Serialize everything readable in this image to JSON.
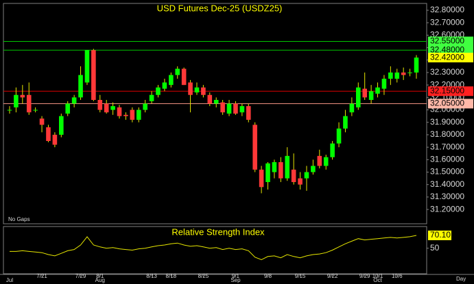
{
  "chart_data": [
    {
      "type": "candlestick",
      "title": "USD Futures Dec-25 (USDZ25)",
      "note": "No Gaps",
      "period": "Day",
      "categories": [
        null,
        null,
        null,
        null,
        null,
        "7/21",
        null,
        null,
        null,
        null,
        null,
        "7/29",
        null,
        null,
        "8/1",
        null,
        null,
        null,
        null,
        null,
        null,
        null,
        "8/13",
        null,
        null,
        "8/18",
        null,
        null,
        null,
        null,
        "8/25",
        null,
        null,
        null,
        null,
        "9/1",
        null,
        null,
        null,
        null,
        "9/8",
        null,
        null,
        null,
        null,
        "9/15",
        null,
        null,
        null,
        null,
        "9/22",
        null,
        null,
        null,
        null,
        "9/29",
        null,
        "10/1",
        null,
        null,
        "10/6",
        null,
        null,
        null
      ],
      "months": [
        {
          "label": "Jul",
          "at": 0
        },
        {
          "label": "Aug",
          "at": 14
        },
        {
          "label": "Sep",
          "at": 35
        },
        {
          "label": "Oct",
          "at": 57
        }
      ],
      "open": [
        32.0,
        32.02,
        32.12,
        32.12,
        32.0,
        31.93,
        31.86,
        31.8,
        31.8,
        31.97,
        32.05,
        32.1,
        32.22,
        32.48,
        32.08,
        32.05,
        32.0,
        32.02,
        31.96,
        32.0,
        31.92,
        32.0,
        32.07,
        32.12,
        32.17,
        32.2,
        32.28,
        32.33,
        32.22,
        32.14,
        32.18,
        32.12,
        32.05,
        32.06,
        31.97,
        32.05,
        31.98,
        32.03,
        31.88,
        31.52,
        31.42,
        31.5,
        31.58,
        31.45,
        31.52,
        31.45,
        31.45,
        31.5,
        31.63,
        31.55,
        31.62,
        31.73,
        31.85,
        31.98,
        32.02,
        32.17,
        32.08,
        32.13,
        32.17,
        32.25,
        32.25,
        32.3,
        32.3,
        32.3
      ],
      "high": [
        32.03,
        32.18,
        32.2,
        32.22,
        32.02,
        31.95,
        31.88,
        31.82,
        31.97,
        32.07,
        32.12,
        32.35,
        32.48,
        32.49,
        32.12,
        32.08,
        32.06,
        32.04,
        31.98,
        32.02,
        32.02,
        32.08,
        32.15,
        32.2,
        32.25,
        32.3,
        32.35,
        32.34,
        32.24,
        32.22,
        32.2,
        32.14,
        32.1,
        32.08,
        32.08,
        32.07,
        32.05,
        32.05,
        31.9,
        31.55,
        31.58,
        31.6,
        31.62,
        31.7,
        31.65,
        31.5,
        31.55,
        31.6,
        31.68,
        31.64,
        31.75,
        31.9,
        32.0,
        32.1,
        32.22,
        32.3,
        32.2,
        32.22,
        32.28,
        32.35,
        32.33,
        32.34,
        32.33,
        32.44
      ],
      "low": [
        31.97,
        31.98,
        32.05,
        31.96,
        31.98,
        31.82,
        31.74,
        31.7,
        31.78,
        31.95,
        32.02,
        32.08,
        32.2,
        32.07,
        31.98,
        31.97,
        31.96,
        31.93,
        31.92,
        31.9,
        31.9,
        31.98,
        32.05,
        32.1,
        32.15,
        32.18,
        32.25,
        32.2,
        31.98,
        32.12,
        32.1,
        32.03,
        32.02,
        31.96,
        31.95,
        31.96,
        31.95,
        31.9,
        31.5,
        31.33,
        31.36,
        31.45,
        31.42,
        31.43,
        31.4,
        31.36,
        31.35,
        31.48,
        31.53,
        31.52,
        31.6,
        31.7,
        31.82,
        31.95,
        32.0,
        32.08,
        32.05,
        32.1,
        32.12,
        32.2,
        32.22,
        32.24,
        32.27,
        32.25
      ],
      "close": [
        32.0,
        32.12,
        32.1,
        31.98,
        32.0,
        31.88,
        31.75,
        31.72,
        31.95,
        32.05,
        32.1,
        32.28,
        32.48,
        32.08,
        32.0,
        31.98,
        32.03,
        31.95,
        31.95,
        31.92,
        32.0,
        32.05,
        32.12,
        32.18,
        32.22,
        32.28,
        32.33,
        32.2,
        32.12,
        32.18,
        32.12,
        32.05,
        32.08,
        31.98,
        32.05,
        31.97,
        32.03,
        31.92,
        31.52,
        31.38,
        31.57,
        31.58,
        31.45,
        31.63,
        31.42,
        31.4,
        31.5,
        31.55,
        31.55,
        31.62,
        31.73,
        31.85,
        31.95,
        32.05,
        32.18,
        32.1,
        32.15,
        32.18,
        32.25,
        32.3,
        32.3,
        32.28,
        32.3,
        32.42
      ],
      "up_color": "#00ff00",
      "down_color": "#ff3838",
      "wick_color": "#e8e800",
      "ylim": [
        31.085,
        32.855
      ],
      "yticks": [
        {
          "value": 32.8,
          "label": "32.80000"
        },
        {
          "value": 32.7,
          "label": "32.70000"
        },
        {
          "value": 32.6,
          "label": "32.60000"
        },
        {
          "value": 32.5,
          "label": "32.50000"
        },
        {
          "value": 32.4,
          "label": "32.40000"
        },
        {
          "value": 32.3,
          "label": "32.30000"
        },
        {
          "value": 32.2,
          "label": "32.20000"
        },
        {
          "value": 32.1,
          "label": "32.10000"
        },
        {
          "value": 32.0,
          "label": "32.00000"
        },
        {
          "value": 31.9,
          "label": "31.90000"
        },
        {
          "value": 31.8,
          "label": "31.80000"
        },
        {
          "value": 31.7,
          "label": "31.70000"
        },
        {
          "value": 31.6,
          "label": "31.60000"
        },
        {
          "value": 31.5,
          "label": "31.50000"
        },
        {
          "value": 31.4,
          "label": "31.40000"
        },
        {
          "value": 31.3,
          "label": "31.30000"
        },
        {
          "value": 31.2,
          "label": "31.20000"
        }
      ],
      "levels": [
        {
          "value": 32.55,
          "label": "32.55000",
          "color": "#00c800",
          "box": "#40ff40"
        },
        {
          "value": 32.48,
          "label": "32.48000",
          "color": "#00c800",
          "box": "#40ff40"
        },
        {
          "value": 32.15,
          "label": "32.15000",
          "color": "#e00000",
          "box": "#ff2020"
        },
        {
          "value": 32.05,
          "label": "32.05000",
          "color": "#f09080",
          "box": "#ffb8a8"
        }
      ],
      "last": {
        "value": 32.42,
        "label": "32.42000",
        "box": "#ffff00"
      }
    },
    {
      "type": "line",
      "title": "Relative Strength Index",
      "values": [
        45,
        45,
        46,
        45,
        44,
        43,
        40,
        38,
        42,
        46,
        48,
        55,
        68,
        55,
        52,
        50,
        51,
        49,
        48,
        47,
        49,
        50,
        52,
        54,
        55,
        57,
        58,
        55,
        53,
        54,
        52,
        50,
        51,
        48,
        50,
        48,
        49,
        46,
        36,
        32,
        37,
        38,
        35,
        40,
        37,
        35,
        38,
        40,
        41,
        43,
        47,
        52,
        57,
        61,
        65,
        63,
        64,
        65,
        66,
        67,
        66,
        67,
        68,
        70.1
      ],
      "color": "#e8e800",
      "ylim": [
        10,
        84
      ],
      "yticks": [
        50
      ],
      "last": {
        "value": 70.1,
        "label": "70.10",
        "box": "#ffff00"
      }
    }
  ]
}
